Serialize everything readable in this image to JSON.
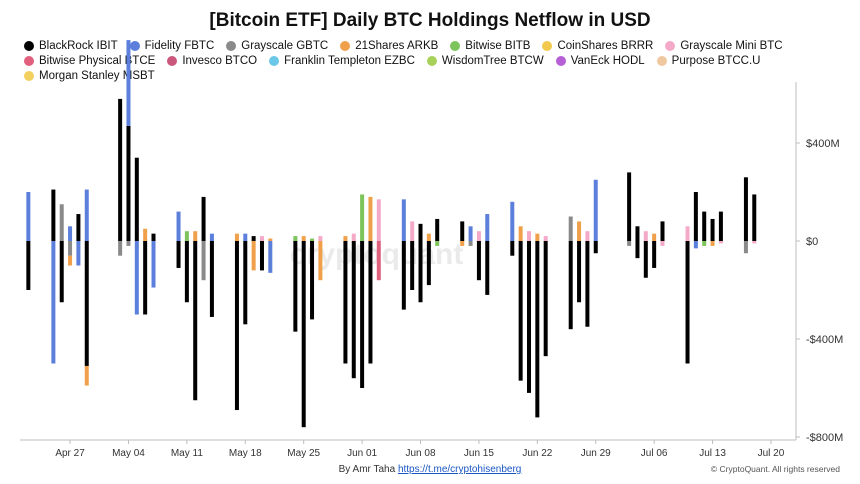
{
  "chart_data": {
    "type": "bar",
    "stacked": true,
    "title": "[Bitcoin ETF] Daily BTC Holdings Netflow in USD",
    "y_unit": "USD",
    "ylim": [
      -800,
      600
    ],
    "y_ticks": [
      {
        "value": 400,
        "label": "$400M"
      },
      {
        "value": 0,
        "label": "$0"
      },
      {
        "value": -400,
        "label": "-$400M"
      },
      {
        "value": -800,
        "label": "-$800M"
      }
    ],
    "x_tick_labels": [
      "Apr 27",
      "May 04",
      "May 11",
      "May 18",
      "May 25",
      "Jun 01",
      "Jun 08",
      "Jun 15",
      "Jun 22",
      "Jun 29",
      "Jul 06",
      "Jul 13",
      "Jul 20"
    ],
    "x_tick_days": [
      6,
      13,
      20,
      27,
      34,
      41,
      48,
      55,
      62,
      69,
      76,
      83,
      90
    ],
    "x_day_range": [
      0,
      93
    ],
    "legend_placement": "top",
    "grid": false,
    "series": [
      {
        "name": "BlackRock IBIT",
        "color": "#000000"
      },
      {
        "name": "Fidelity FBTC",
        "color": "#5b7fdb"
      },
      {
        "name": "Grayscale GBTC",
        "color": "#8a8a8a"
      },
      {
        "name": "21Shares ARKB",
        "color": "#f0a04b"
      },
      {
        "name": "Bitwise BITB",
        "color": "#7cc45b"
      },
      {
        "name": "CoinShares BRRR",
        "color": "#f2c94c"
      },
      {
        "name": "Grayscale Mini BTC",
        "color": "#f4a9c8"
      },
      {
        "name": "Bitwise Physical BTCE",
        "color": "#e0607e"
      },
      {
        "name": "Invesco BTCO",
        "color": "#c9587c"
      },
      {
        "name": "Franklin Templeton EZBC",
        "color": "#6cc8e8"
      },
      {
        "name": "WisdomTree BTCW",
        "color": "#a8d15b"
      },
      {
        "name": "VanEck HODL",
        "color": "#b65fd6"
      },
      {
        "name": "Purpose BTCC.U",
        "color": "#f0c8a0"
      },
      {
        "name": "Morgan Stanley MSBT",
        "color": "#f2d060"
      }
    ],
    "days": [
      {
        "d": 1,
        "pos": [
          [
            1,
            200
          ]
        ],
        "neg": [
          [
            0,
            200
          ]
        ]
      },
      {
        "d": 4,
        "pos": [
          [
            0,
            210
          ]
        ],
        "neg": [
          [
            1,
            500
          ]
        ]
      },
      {
        "d": 5,
        "pos": [
          [
            2,
            150
          ]
        ],
        "neg": [
          [
            0,
            250
          ]
        ]
      },
      {
        "d": 6,
        "pos": [
          [
            1,
            60
          ]
        ],
        "neg": [
          [
            2,
            60
          ],
          [
            3,
            40
          ]
        ]
      },
      {
        "d": 7,
        "pos": [
          [
            0,
            110
          ]
        ],
        "neg": [
          [
            1,
            100
          ]
        ]
      },
      {
        "d": 8,
        "pos": [
          [
            1,
            210
          ]
        ],
        "neg": [
          [
            0,
            510
          ],
          [
            3,
            80
          ]
        ]
      },
      {
        "d": 12,
        "pos": [
          [
            0,
            580
          ]
        ],
        "neg": [
          [
            2,
            60
          ]
        ]
      },
      {
        "d": 13,
        "pos": [
          [
            0,
            470
          ],
          [
            1,
            350
          ]
        ],
        "neg": [
          [
            2,
            20
          ]
        ]
      },
      {
        "d": 14,
        "pos": [
          [
            0,
            340
          ]
        ],
        "neg": [
          [
            1,
            300
          ]
        ]
      },
      {
        "d": 15,
        "pos": [
          [
            3,
            50
          ]
        ],
        "neg": [
          [
            0,
            300
          ]
        ]
      },
      {
        "d": 16,
        "pos": [
          [
            0,
            30
          ]
        ],
        "neg": [
          [
            1,
            190
          ]
        ]
      },
      {
        "d": 19,
        "pos": [
          [
            1,
            120
          ]
        ],
        "neg": [
          [
            0,
            110
          ]
        ]
      },
      {
        "d": 20,
        "pos": [
          [
            4,
            40
          ]
        ],
        "neg": [
          [
            0,
            250
          ]
        ]
      },
      {
        "d": 21,
        "pos": [
          [
            3,
            40
          ]
        ],
        "neg": [
          [
            0,
            650
          ]
        ]
      },
      {
        "d": 22,
        "pos": [
          [
            0,
            180
          ]
        ],
        "neg": [
          [
            2,
            160
          ]
        ]
      },
      {
        "d": 23,
        "pos": [
          [
            1,
            30
          ]
        ],
        "neg": [
          [
            0,
            310
          ]
        ]
      },
      {
        "d": 26,
        "pos": [
          [
            3,
            30
          ]
        ],
        "neg": [
          [
            0,
            690
          ]
        ]
      },
      {
        "d": 27,
        "pos": [
          [
            1,
            30
          ]
        ],
        "neg": [
          [
            0,
            340
          ]
        ]
      },
      {
        "d": 28,
        "pos": [
          [
            0,
            20
          ]
        ],
        "neg": [
          [
            3,
            120
          ]
        ]
      },
      {
        "d": 29,
        "pos": [
          [
            6,
            20
          ]
        ],
        "neg": [
          [
            0,
            120
          ]
        ]
      },
      {
        "d": 30,
        "pos": [
          [
            3,
            10
          ]
        ],
        "neg": [
          [
            1,
            130
          ]
        ]
      },
      {
        "d": 33,
        "pos": [
          [
            4,
            20
          ]
        ],
        "neg": [
          [
            0,
            370
          ]
        ]
      },
      {
        "d": 34,
        "pos": [
          [
            3,
            20
          ]
        ],
        "neg": [
          [
            0,
            760
          ]
        ]
      },
      {
        "d": 35,
        "pos": [
          [
            4,
            10
          ]
        ],
        "neg": [
          [
            0,
            320
          ]
        ]
      },
      {
        "d": 36,
        "pos": [
          [
            6,
            20
          ]
        ],
        "neg": [
          [
            3,
            160
          ]
        ]
      },
      {
        "d": 39,
        "pos": [
          [
            3,
            20
          ]
        ],
        "neg": [
          [
            0,
            500
          ]
        ]
      },
      {
        "d": 40,
        "pos": [
          [
            6,
            30
          ]
        ],
        "neg": [
          [
            0,
            560
          ]
        ]
      },
      {
        "d": 41,
        "pos": [
          [
            4,
            190
          ]
        ],
        "neg": [
          [
            0,
            600
          ]
        ]
      },
      {
        "d": 42,
        "pos": [
          [
            3,
            180
          ]
        ],
        "neg": [
          [
            0,
            500
          ]
        ]
      },
      {
        "d": 43,
        "pos": [
          [
            6,
            170
          ]
        ],
        "neg": [
          [
            7,
            160
          ]
        ]
      },
      {
        "d": 46,
        "pos": [
          [
            1,
            170
          ]
        ],
        "neg": [
          [
            0,
            280
          ]
        ]
      },
      {
        "d": 47,
        "pos": [
          [
            6,
            80
          ]
        ],
        "neg": [
          [
            0,
            200
          ]
        ]
      },
      {
        "d": 48,
        "pos": [
          [
            0,
            70
          ]
        ],
        "neg": [
          [
            0,
            250
          ]
        ]
      },
      {
        "d": 49,
        "pos": [
          [
            3,
            30
          ]
        ],
        "neg": [
          [
            0,
            180
          ]
        ]
      },
      {
        "d": 50,
        "pos": [
          [
            0,
            90
          ]
        ],
        "neg": [
          [
            4,
            20
          ]
        ]
      },
      {
        "d": 53,
        "pos": [
          [
            0,
            80
          ]
        ],
        "neg": [
          [
            3,
            20
          ]
        ]
      },
      {
        "d": 54,
        "pos": [
          [
            1,
            60
          ]
        ],
        "neg": [
          [
            2,
            20
          ]
        ]
      },
      {
        "d": 55,
        "pos": [
          [
            6,
            40
          ]
        ],
        "neg": [
          [
            0,
            160
          ]
        ]
      },
      {
        "d": 56,
        "pos": [
          [
            1,
            110
          ]
        ],
        "neg": [
          [
            0,
            220
          ]
        ]
      },
      {
        "d": 59,
        "pos": [
          [
            1,
            160
          ]
        ],
        "neg": [
          [
            0,
            60
          ]
        ]
      },
      {
        "d": 60,
        "pos": [
          [
            3,
            60
          ]
        ],
        "neg": [
          [
            0,
            570
          ]
        ]
      },
      {
        "d": 61,
        "pos": [
          [
            6,
            40
          ]
        ],
        "neg": [
          [
            0,
            620
          ]
        ]
      },
      {
        "d": 62,
        "pos": [
          [
            3,
            30
          ]
        ],
        "neg": [
          [
            0,
            720
          ]
        ]
      },
      {
        "d": 63,
        "pos": [
          [
            6,
            20
          ]
        ],
        "neg": [
          [
            0,
            470
          ]
        ]
      },
      {
        "d": 66,
        "pos": [
          [
            2,
            100
          ]
        ],
        "neg": [
          [
            0,
            360
          ]
        ]
      },
      {
        "d": 67,
        "pos": [
          [
            3,
            80
          ]
        ],
        "neg": [
          [
            0,
            250
          ]
        ]
      },
      {
        "d": 68,
        "pos": [
          [
            6,
            40
          ]
        ],
        "neg": [
          [
            0,
            350
          ]
        ]
      },
      {
        "d": 69,
        "pos": [
          [
            1,
            250
          ]
        ],
        "neg": [
          [
            0,
            50
          ]
        ]
      },
      {
        "d": 73,
        "pos": [
          [
            0,
            280
          ]
        ],
        "neg": [
          [
            2,
            20
          ]
        ]
      },
      {
        "d": 74,
        "pos": [
          [
            0,
            60
          ]
        ],
        "neg": [
          [
            0,
            70
          ]
        ]
      },
      {
        "d": 75,
        "pos": [
          [
            6,
            40
          ]
        ],
        "neg": [
          [
            0,
            150
          ]
        ]
      },
      {
        "d": 76,
        "pos": [
          [
            3,
            30
          ]
        ],
        "neg": [
          [
            0,
            110
          ]
        ]
      },
      {
        "d": 77,
        "pos": [
          [
            0,
            80
          ]
        ],
        "neg": [
          [
            6,
            20
          ]
        ]
      },
      {
        "d": 80,
        "pos": [
          [
            6,
            60
          ]
        ],
        "neg": [
          [
            0,
            500
          ]
        ]
      },
      {
        "d": 81,
        "pos": [
          [
            0,
            200
          ]
        ],
        "neg": [
          [
            1,
            30
          ]
        ]
      },
      {
        "d": 82,
        "pos": [
          [
            0,
            120
          ]
        ],
        "neg": [
          [
            4,
            20
          ]
        ]
      },
      {
        "d": 83,
        "pos": [
          [
            0,
            90
          ]
        ],
        "neg": [
          [
            3,
            20
          ]
        ]
      },
      {
        "d": 84,
        "pos": [
          [
            0,
            120
          ]
        ],
        "neg": [
          [
            6,
            10
          ]
        ]
      },
      {
        "d": 87,
        "pos": [
          [
            0,
            260
          ]
        ],
        "neg": [
          [
            2,
            50
          ]
        ]
      },
      {
        "d": 88,
        "pos": [
          [
            0,
            190
          ]
        ],
        "neg": [
          [
            6,
            10
          ]
        ]
      }
    ]
  },
  "footer": {
    "byline": "By Amr Taha",
    "link": "https://t.me/cryptohisenberg",
    "copyright": "© CryptoQuant. All rights reserved"
  },
  "watermark": "cryptoquant"
}
